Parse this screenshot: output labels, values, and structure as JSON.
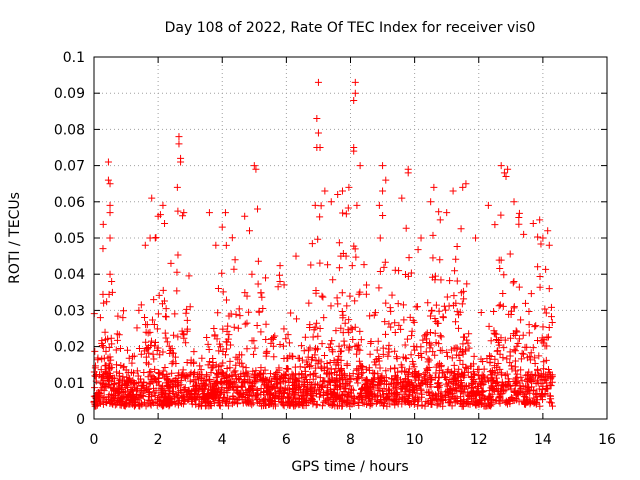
{
  "chart_data": {
    "type": "scatter",
    "title": "Day 108 of 2022, Rate Of TEC Index for receiver vis0",
    "xlabel": "GPS time / hours",
    "ylabel": "ROTI / TECUs",
    "xlim": [
      0,
      16
    ],
    "ylim": [
      0,
      0.1
    ],
    "x_ticks": [
      "0",
      "2",
      "4",
      "6",
      "8",
      "10",
      "12",
      "14",
      "16"
    ],
    "y_ticks": [
      "0",
      "0.01",
      "0.02",
      "0.03",
      "0.04",
      "0.05",
      "0.06",
      "0.07",
      "0.08",
      "0.09",
      "0.1"
    ],
    "grid": true,
    "marker": "+",
    "color": "#ff0000",
    "x_data_range": [
      0,
      14.3
    ],
    "series": [
      {
        "points": [
          [
            0.2,
            0.028
          ],
          [
            0.3,
            0.032
          ],
          [
            0.45,
            0.071
          ],
          [
            0.45,
            0.066
          ],
          [
            0.5,
            0.065
          ],
          [
            0.5,
            0.059
          ],
          [
            0.5,
            0.057
          ],
          [
            0.5,
            0.05
          ],
          [
            0.5,
            0.04
          ],
          [
            0.55,
            0.038
          ],
          [
            0.9,
            0.028
          ],
          [
            1.4,
            0.03
          ],
          [
            1.6,
            0.048
          ],
          [
            1.75,
            0.05
          ],
          [
            1.8,
            0.061
          ],
          [
            2.0,
            0.056
          ],
          [
            2.15,
            0.059
          ],
          [
            2.2,
            0.054
          ],
          [
            2.4,
            0.043
          ],
          [
            2.6,
            0.064
          ],
          [
            2.65,
            0.078
          ],
          [
            2.65,
            0.076
          ],
          [
            2.7,
            0.072
          ],
          [
            2.7,
            0.071
          ],
          [
            2.8,
            0.057
          ],
          [
            3.0,
            0.031
          ],
          [
            3.6,
            0.057
          ],
          [
            3.8,
            0.048
          ],
          [
            4.0,
            0.053
          ],
          [
            4.1,
            0.057
          ],
          [
            4.4,
            0.044
          ],
          [
            4.7,
            0.056
          ],
          [
            4.85,
            0.052
          ],
          [
            5.0,
            0.07
          ],
          [
            5.05,
            0.069
          ],
          [
            5.1,
            0.058
          ],
          [
            5.35,
            0.039
          ],
          [
            5.8,
            0.038
          ],
          [
            6.3,
            0.045
          ],
          [
            6.7,
            0.032
          ],
          [
            6.9,
            0.059
          ],
          [
            6.95,
            0.075
          ],
          [
            6.95,
            0.083
          ],
          [
            7.0,
            0.093
          ],
          [
            7.0,
            0.079
          ],
          [
            7.05,
            0.075
          ],
          [
            7.2,
            0.063
          ],
          [
            7.4,
            0.06
          ],
          [
            7.6,
            0.062
          ],
          [
            7.7,
            0.045
          ],
          [
            7.75,
            0.063
          ],
          [
            7.95,
            0.064
          ],
          [
            8.1,
            0.075
          ],
          [
            8.1,
            0.074
          ],
          [
            8.1,
            0.088
          ],
          [
            8.15,
            0.093
          ],
          [
            8.15,
            0.09
          ],
          [
            8.2,
            0.059
          ],
          [
            8.3,
            0.07
          ],
          [
            8.5,
            0.037
          ],
          [
            8.9,
            0.059
          ],
          [
            9.0,
            0.063
          ],
          [
            9.0,
            0.07
          ],
          [
            9.1,
            0.066
          ],
          [
            9.5,
            0.041
          ],
          [
            9.6,
            0.061
          ],
          [
            9.8,
            0.069
          ],
          [
            9.8,
            0.068
          ],
          [
            10.2,
            0.05
          ],
          [
            10.5,
            0.06
          ],
          [
            10.6,
            0.064
          ],
          [
            10.8,
            0.055
          ],
          [
            11.0,
            0.057
          ],
          [
            11.2,
            0.063
          ],
          [
            11.5,
            0.064
          ],
          [
            11.6,
            0.065
          ],
          [
            11.9,
            0.05
          ],
          [
            12.3,
            0.059
          ],
          [
            12.7,
            0.07
          ],
          [
            12.8,
            0.068
          ],
          [
            12.85,
            0.067
          ],
          [
            12.9,
            0.069
          ],
          [
            13.1,
            0.06
          ],
          [
            13.4,
            0.051
          ],
          [
            13.7,
            0.054
          ],
          [
            13.9,
            0.055
          ],
          [
            14.0,
            0.05
          ],
          [
            14.15,
            0.052
          ],
          [
            14.2,
            0.048
          ],
          [
            14.2,
            0.036
          ]
        ]
      }
    ]
  }
}
